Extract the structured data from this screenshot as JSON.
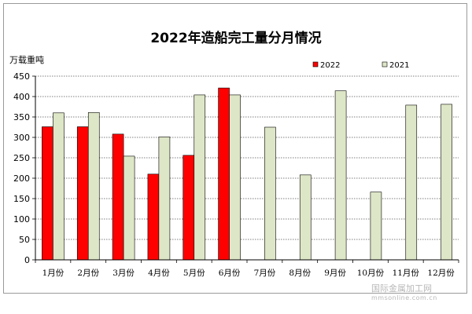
{
  "colors": {
    "series_2022": "#ff0000",
    "series_2021": "#dde6c6",
    "bar_stroke": "#000000",
    "grid": "#000000"
  },
  "watermark": {
    "name": "国际金属加工网",
    "url": "mmsonline.com.cn"
  },
  "chart_data": {
    "type": "bar",
    "title": "2022年造船完工量分月情况",
    "ylabel": "万载重吨",
    "xlabel": "",
    "ylim": [
      0,
      450
    ],
    "yticks": [
      0,
      50,
      100,
      150,
      200,
      250,
      300,
      350,
      400,
      450
    ],
    "grid": true,
    "legend_position": "top-right",
    "categories": [
      "1月份",
      "2月份",
      "3月份",
      "4月份",
      "5月份",
      "6月份",
      "7月份",
      "8月份",
      "9月份",
      "10月份",
      "11月份",
      "12月份"
    ],
    "series": [
      {
        "name": "2022",
        "values": [
          326,
          326,
          308,
          210,
          256,
          421,
          null,
          null,
          null,
          null,
          null,
          null
        ]
      },
      {
        "name": "2021",
        "values": [
          360,
          361,
          254,
          301,
          404,
          404,
          325,
          208,
          414,
          166,
          379,
          381
        ]
      }
    ]
  }
}
